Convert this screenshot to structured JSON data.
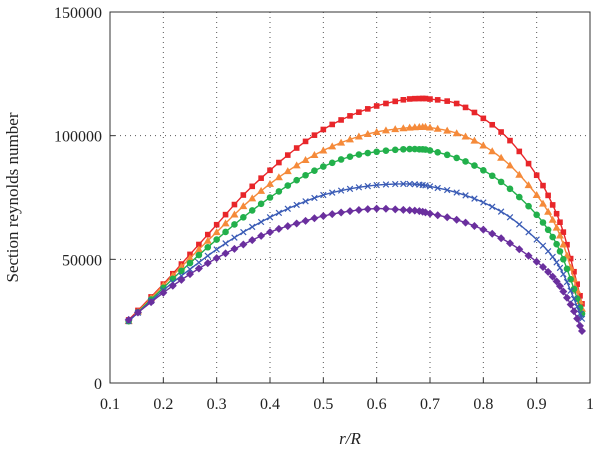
{
  "chart_data": {
    "type": "line",
    "xlabel": "r/R",
    "ylabel": "Section reynolds number",
    "xlim": [
      0.1,
      1.0
    ],
    "ylim": [
      0,
      150000
    ],
    "xticks": [
      0.1,
      0.2,
      0.3,
      0.4,
      0.5,
      0.6,
      0.7,
      0.8,
      0.9,
      1.0
    ],
    "xtick_labels": [
      "0.1",
      "0.2",
      "0.3",
      "0.4",
      "0.5",
      "0.6",
      "0.7",
      "0.8",
      "0.9",
      "1"
    ],
    "yticks": [
      0,
      50000,
      100000,
      150000
    ],
    "ytick_labels": [
      "0",
      "50000",
      "100000",
      "150000"
    ],
    "grid": "dotted",
    "legend": "none",
    "series": [
      {
        "color": "#e8262a",
        "marker": "square",
        "points": [
          [
            0.135,
            25500
          ],
          [
            0.2,
            40000
          ],
          [
            0.25,
            52000
          ],
          [
            0.3,
            64000
          ],
          [
            0.35,
            76000
          ],
          [
            0.4,
            86000
          ],
          [
            0.45,
            95000
          ],
          [
            0.5,
            102500
          ],
          [
            0.55,
            108000
          ],
          [
            0.6,
            112000
          ],
          [
            0.65,
            114500
          ],
          [
            0.68,
            115000
          ],
          [
            0.7,
            114800
          ],
          [
            0.75,
            113000
          ],
          [
            0.8,
            107000
          ],
          [
            0.85,
            98000
          ],
          [
            0.9,
            84000
          ],
          [
            0.93,
            72000
          ],
          [
            0.95,
            61000
          ],
          [
            0.97,
            45000
          ],
          [
            0.985,
            32000
          ]
        ]
      },
      {
        "color": "#f58a3a",
        "marker": "triangle",
        "points": [
          [
            0.135,
            25000
          ],
          [
            0.2,
            39500
          ],
          [
            0.25,
            50500
          ],
          [
            0.3,
            61000
          ],
          [
            0.35,
            71500
          ],
          [
            0.4,
            80500
          ],
          [
            0.45,
            88000
          ],
          [
            0.5,
            94000
          ],
          [
            0.55,
            98500
          ],
          [
            0.6,
            101500
          ],
          [
            0.65,
            103000
          ],
          [
            0.68,
            103500
          ],
          [
            0.7,
            103300
          ],
          [
            0.75,
            101000
          ],
          [
            0.8,
            96000
          ],
          [
            0.85,
            88000
          ],
          [
            0.9,
            76000
          ],
          [
            0.93,
            66000
          ],
          [
            0.95,
            56000
          ],
          [
            0.97,
            42000
          ],
          [
            0.985,
            30000
          ]
        ]
      },
      {
        "color": "#22b04b",
        "marker": "circle",
        "points": [
          [
            0.135,
            25000
          ],
          [
            0.2,
            38500
          ],
          [
            0.25,
            48500
          ],
          [
            0.3,
            58000
          ],
          [
            0.35,
            67000
          ],
          [
            0.4,
            75000
          ],
          [
            0.45,
            82000
          ],
          [
            0.5,
            87500
          ],
          [
            0.55,
            91500
          ],
          [
            0.6,
            93500
          ],
          [
            0.65,
            94500
          ],
          [
            0.68,
            94500
          ],
          [
            0.7,
            94000
          ],
          [
            0.75,
            91000
          ],
          [
            0.8,
            86000
          ],
          [
            0.85,
            78500
          ],
          [
            0.9,
            68000
          ],
          [
            0.93,
            59000
          ],
          [
            0.95,
            50000
          ],
          [
            0.97,
            38000
          ],
          [
            0.985,
            28000
          ]
        ]
      },
      {
        "color": "#3a5bb5",
        "marker": "x",
        "points": [
          [
            0.135,
            25000
          ],
          [
            0.2,
            37500
          ],
          [
            0.25,
            46000
          ],
          [
            0.3,
            54000
          ],
          [
            0.35,
            61000
          ],
          [
            0.4,
            67000
          ],
          [
            0.45,
            72000
          ],
          [
            0.5,
            76000
          ],
          [
            0.55,
            78500
          ],
          [
            0.6,
            80000
          ],
          [
            0.65,
            80500
          ],
          [
            0.68,
            80200
          ],
          [
            0.7,
            79500
          ],
          [
            0.75,
            77000
          ],
          [
            0.8,
            73000
          ],
          [
            0.85,
            67000
          ],
          [
            0.9,
            58000
          ],
          [
            0.93,
            51000
          ],
          [
            0.95,
            44000
          ],
          [
            0.97,
            34000
          ],
          [
            0.985,
            26000
          ]
        ]
      },
      {
        "color": "#6a2f9e",
        "marker": "diamond",
        "points": [
          [
            0.135,
            25500
          ],
          [
            0.2,
            36500
          ],
          [
            0.25,
            44000
          ],
          [
            0.3,
            50500
          ],
          [
            0.35,
            56000
          ],
          [
            0.4,
            61000
          ],
          [
            0.45,
            64500
          ],
          [
            0.5,
            67500
          ],
          [
            0.55,
            69500
          ],
          [
            0.6,
            70500
          ],
          [
            0.65,
            70000
          ],
          [
            0.68,
            69500
          ],
          [
            0.7,
            68500
          ],
          [
            0.75,
            66000
          ],
          [
            0.8,
            62000
          ],
          [
            0.85,
            56500
          ],
          [
            0.9,
            49000
          ],
          [
            0.93,
            43000
          ],
          [
            0.95,
            37000
          ],
          [
            0.97,
            29000
          ],
          [
            0.985,
            21000
          ]
        ]
      }
    ]
  }
}
